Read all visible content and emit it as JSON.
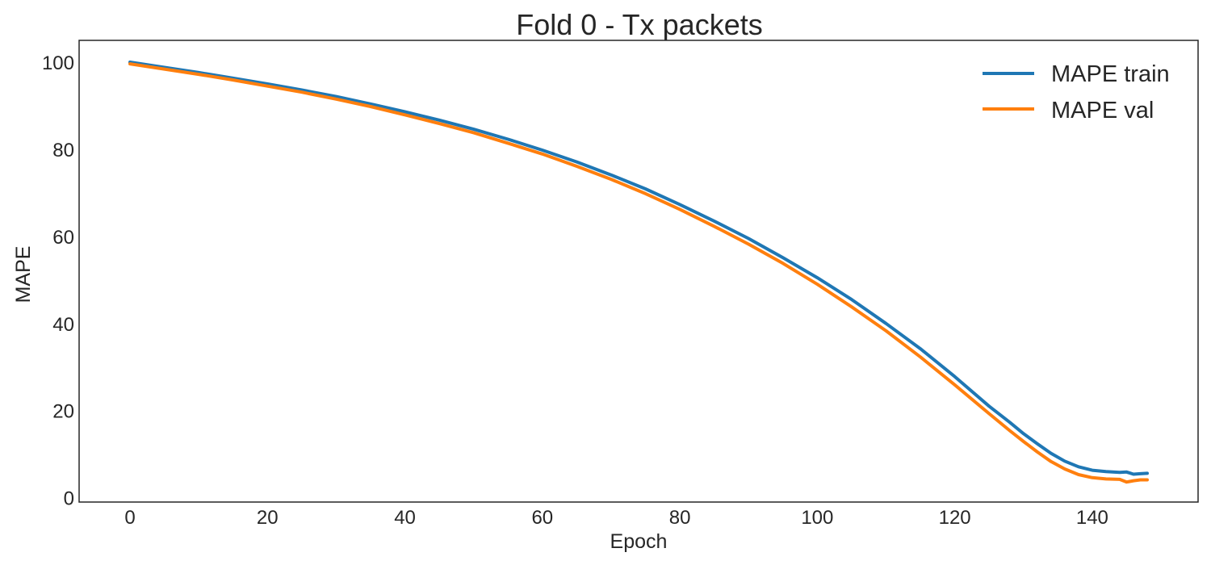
{
  "chart_data": {
    "type": "line",
    "title": "Fold 0 - Tx packets",
    "xlabel": "Epoch",
    "ylabel": "MAPE",
    "xlim": [
      -7.4,
      155.4
    ],
    "ylim": [
      -1,
      105
    ],
    "xticks": [
      0,
      20,
      40,
      60,
      80,
      100,
      120,
      140
    ],
    "yticks": [
      0,
      20,
      40,
      60,
      80,
      100
    ],
    "grid": false,
    "legend_position": "top-right",
    "series": [
      {
        "name": "MAPE train",
        "color": "#1f77b4",
        "x": [
          0,
          5,
          10,
          15,
          20,
          25,
          30,
          35,
          40,
          45,
          50,
          55,
          60,
          65,
          70,
          75,
          80,
          85,
          90,
          95,
          100,
          105,
          110,
          115,
          120,
          125,
          128,
          130,
          132,
          134,
          136,
          138,
          140,
          142,
          144,
          145,
          146,
          147,
          148
        ],
        "values": [
          100,
          98.8,
          97.6,
          96.3,
          95.0,
          93.6,
          92.1,
          90.4,
          88.6,
          86.7,
          84.6,
          82.3,
          79.8,
          77.1,
          74.1,
          70.9,
          67.3,
          63.5,
          59.5,
          55.1,
          50.5,
          45.5,
          40.0,
          34.2,
          27.8,
          21.0,
          17.3,
          14.7,
          12.4,
          10.2,
          8.4,
          7.1,
          6.3,
          6.0,
          5.8,
          5.9,
          5.4,
          5.5,
          5.6
        ]
      },
      {
        "name": "MAPE val",
        "color": "#ff7f0e",
        "x": [
          0,
          5,
          10,
          15,
          20,
          25,
          30,
          35,
          40,
          45,
          50,
          55,
          60,
          65,
          70,
          75,
          80,
          85,
          90,
          95,
          100,
          105,
          110,
          115,
          120,
          125,
          128,
          130,
          132,
          134,
          136,
          138,
          140,
          142,
          144,
          145,
          146,
          147,
          148
        ],
        "values": [
          99.6,
          98.4,
          97.2,
          95.9,
          94.5,
          93.1,
          91.5,
          89.8,
          87.9,
          85.9,
          83.8,
          81.4,
          78.9,
          76.1,
          73.1,
          69.8,
          66.2,
          62.3,
          58.2,
          53.8,
          49.0,
          43.8,
          38.3,
          32.3,
          25.9,
          19.3,
          15.4,
          12.9,
          10.5,
          8.3,
          6.6,
          5.3,
          4.6,
          4.3,
          4.2,
          3.6,
          3.9,
          4.1,
          4.1
        ]
      }
    ]
  }
}
